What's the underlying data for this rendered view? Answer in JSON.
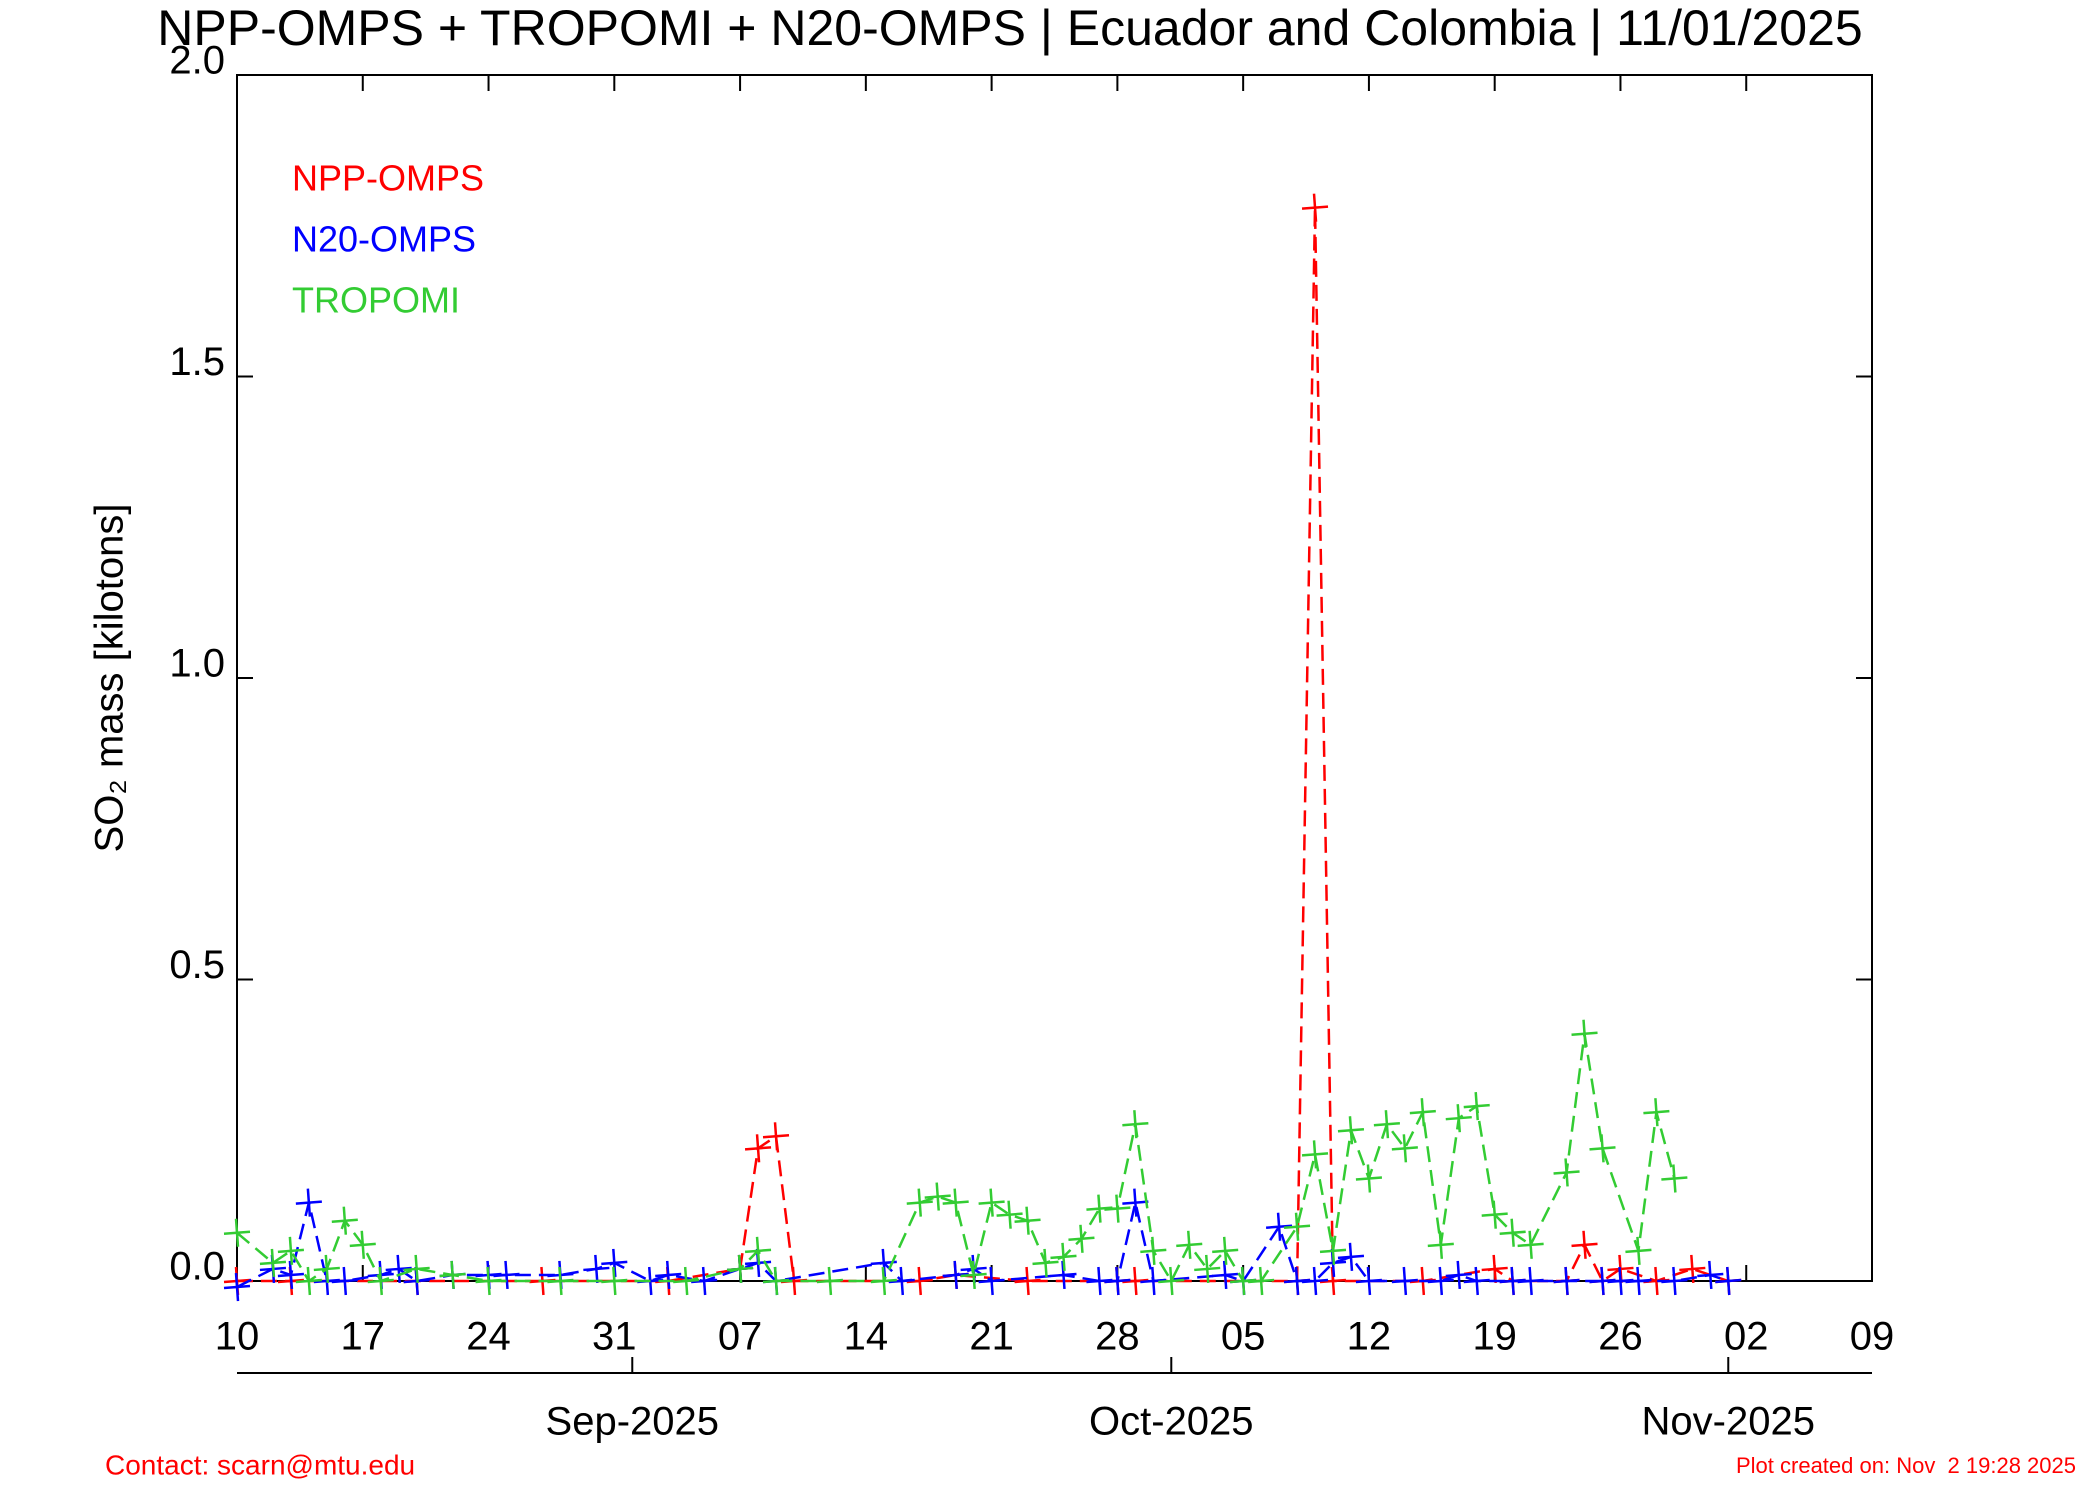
{
  "chart_data": {
    "type": "line",
    "title": "NPP-OMPS + TROPOMI + N20-OMPS | Ecuador and Colombia | 11/01/2025",
    "ylabel": "SO₂ mass [kilotons]",
    "xlim": [
      "2025-08-10",
      "2025-11-09"
    ],
    "xticks": [
      {
        "value": "2025-08-10",
        "label": "10"
      },
      {
        "value": "2025-08-17",
        "label": "17"
      },
      {
        "value": "2025-08-24",
        "label": "24"
      },
      {
        "value": "2025-08-31",
        "label": "31"
      },
      {
        "value": "2025-09-07",
        "label": "07"
      },
      {
        "value": "2025-09-14",
        "label": "14"
      },
      {
        "value": "2025-09-21",
        "label": "21"
      },
      {
        "value": "2025-09-28",
        "label": "28"
      },
      {
        "value": "2025-10-05",
        "label": "05"
      },
      {
        "value": "2025-10-12",
        "label": "12"
      },
      {
        "value": "2025-10-19",
        "label": "19"
      },
      {
        "value": "2025-10-26",
        "label": "26"
      },
      {
        "value": "2025-11-02",
        "label": "02"
      },
      {
        "value": "2025-11-09",
        "label": "09"
      }
    ],
    "month_ticks": [
      {
        "value": "2025-09-01",
        "label": "Sep-2025"
      },
      {
        "value": "2025-10-01",
        "label": "Oct-2025"
      },
      {
        "value": "2025-11-01",
        "label": "Nov-2025"
      }
    ],
    "ylim": [
      0,
      2.0
    ],
    "yticks": [
      {
        "value": 0,
        "label": "0.0"
      },
      0.5,
      {
        "value": 1,
        "label": "1.0"
      },
      1.5,
      {
        "value": 2,
        "label": "2.0"
      }
    ],
    "series": [
      {
        "name": "NPP-OMPS",
        "color": "#ff0000",
        "x": [
          "2025-08-10",
          "2025-08-13",
          "2025-08-20",
          "2025-08-27",
          "2025-09-03",
          "2025-09-07",
          "2025-09-08",
          "2025-09-09",
          "2025-09-10",
          "2025-09-17",
          "2025-09-19",
          "2025-09-23",
          "2025-09-28",
          "2025-09-29",
          "2025-10-08",
          "2025-10-09",
          "2025-10-10",
          "2025-10-15",
          "2025-10-19",
          "2025-10-20",
          "2025-10-23",
          "2025-10-24",
          "2025-10-25",
          "2025-10-26",
          "2025-10-28",
          "2025-10-30",
          "2025-11-01"
        ],
        "values": [
          0,
          0,
          0,
          0,
          0,
          0.02,
          0.22,
          0.24,
          0,
          0,
          0.01,
          0,
          0,
          0,
          0,
          1.78,
          0,
          0,
          0.02,
          0,
          0,
          0.06,
          0,
          0.02,
          0,
          0.02,
          0
        ]
      },
      {
        "name": "N20-OMPS",
        "color": "#0000ff",
        "x": [
          "2025-08-10",
          "2025-08-12",
          "2025-08-13",
          "2025-08-14",
          "2025-08-15",
          "2025-08-16",
          "2025-08-18",
          "2025-08-19",
          "2025-08-20",
          "2025-08-22",
          "2025-08-24",
          "2025-08-25",
          "2025-08-28",
          "2025-08-30",
          "2025-08-31",
          "2025-09-02",
          "2025-09-03",
          "2025-09-05",
          "2025-09-07",
          "2025-09-08",
          "2025-09-09",
          "2025-09-15",
          "2025-09-16",
          "2025-09-19",
          "2025-09-20",
          "2025-09-21",
          "2025-09-25",
          "2025-09-27",
          "2025-09-28",
          "2025-09-29",
          "2025-09-30",
          "2025-10-04",
          "2025-10-05",
          "2025-10-07",
          "2025-10-08",
          "2025-10-09",
          "2025-10-10",
          "2025-10-11",
          "2025-10-12",
          "2025-10-14",
          "2025-10-16",
          "2025-10-17",
          "2025-10-18",
          "2025-10-20",
          "2025-10-21",
          "2025-10-23",
          "2025-10-25",
          "2025-10-26",
          "2025-10-27",
          "2025-10-29",
          "2025-10-31",
          "2025-11-01"
        ],
        "values": [
          -0.01,
          0.02,
          0.01,
          0.13,
          0,
          0,
          0.01,
          0.02,
          0,
          0.01,
          0.01,
          0.01,
          0.01,
          0.02,
          0.03,
          0,
          0.01,
          0,
          0.02,
          0.03,
          0,
          0.03,
          0,
          0.01,
          0.02,
          0,
          0.01,
          0,
          0,
          0.13,
          0,
          0.01,
          0,
          0.09,
          0,
          0,
          0.03,
          0.04,
          0,
          0,
          0,
          0.01,
          0,
          0,
          0,
          0,
          0,
          0,
          0,
          0,
          0.01,
          0
        ]
      },
      {
        "name": "TROPOMI",
        "color": "#33cc33",
        "x": [
          "2025-08-10",
          "2025-08-12",
          "2025-08-13",
          "2025-08-14",
          "2025-08-15",
          "2025-08-16",
          "2025-08-17",
          "2025-08-18",
          "2025-08-20",
          "2025-08-22",
          "2025-08-24",
          "2025-08-28",
          "2025-08-31",
          "2025-09-04",
          "2025-09-07",
          "2025-09-08",
          "2025-09-09",
          "2025-09-12",
          "2025-09-15",
          "2025-09-17",
          "2025-09-18",
          "2025-09-19",
          "2025-09-20",
          "2025-09-21",
          "2025-09-22",
          "2025-09-23",
          "2025-09-24",
          "2025-09-25",
          "2025-09-26",
          "2025-09-27",
          "2025-09-28",
          "2025-09-29",
          "2025-09-30",
          "2025-10-01",
          "2025-10-02",
          "2025-10-03",
          "2025-10-04",
          "2025-10-05",
          "2025-10-06",
          "2025-10-08",
          "2025-10-09",
          "2025-10-10",
          "2025-10-11",
          "2025-10-12",
          "2025-10-13",
          "2025-10-14",
          "2025-10-15",
          "2025-10-16",
          "2025-10-17",
          "2025-10-18",
          "2025-10-19",
          "2025-10-20",
          "2025-10-21",
          "2025-10-23",
          "2025-10-24",
          "2025-10-25",
          "2025-10-27",
          "2025-10-28",
          "2025-10-29"
        ],
        "values": [
          0.08,
          0.03,
          0.05,
          0,
          0.02,
          0.1,
          0.06,
          0,
          0.02,
          0.01,
          0,
          0,
          0,
          0,
          0.02,
          0.05,
          0,
          0,
          0,
          0.13,
          0.14,
          0.13,
          0.01,
          0.13,
          0.11,
          0.1,
          0.03,
          0.04,
          0.07,
          0.12,
          0.12,
          0.26,
          0.05,
          0,
          0.06,
          0.02,
          0.05,
          0,
          0,
          0.09,
          0.21,
          0.05,
          0.25,
          0.17,
          0.26,
          0.22,
          0.28,
          0.06,
          0.27,
          0.29,
          0.11,
          0.08,
          0.06,
          0.18,
          0.41,
          0.22,
          0.05,
          0.28,
          0.17
        ]
      }
    ],
    "legend": "upper left",
    "contact": "Contact: scarn@mtu.edu",
    "created": "Plot created on: Nov  2 19:28 2025"
  }
}
